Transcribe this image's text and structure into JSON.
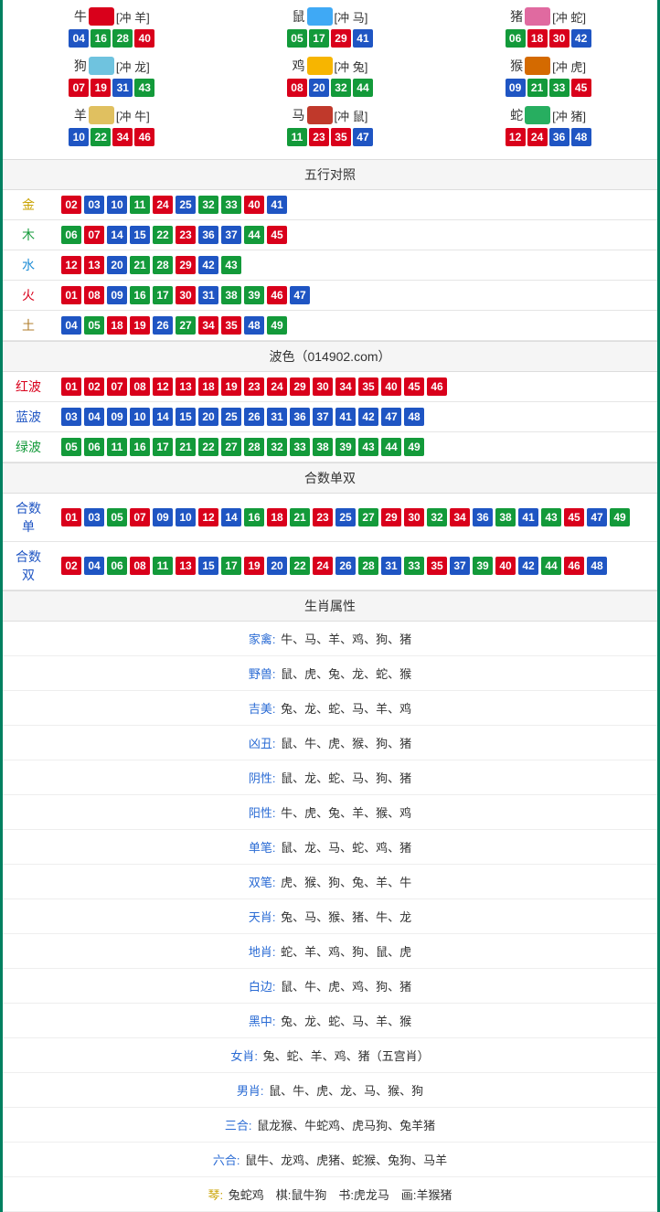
{
  "colors": {
    "red": "#d9001b",
    "blue": "#1f55c3",
    "green": "#139a3a"
  },
  "ball_color_map": {
    "01": "red",
    "02": "red",
    "07": "red",
    "08": "red",
    "12": "red",
    "13": "red",
    "18": "red",
    "19": "red",
    "23": "red",
    "24": "red",
    "29": "red",
    "30": "red",
    "34": "red",
    "35": "red",
    "40": "red",
    "45": "red",
    "46": "red",
    "03": "blue",
    "04": "blue",
    "09": "blue",
    "10": "blue",
    "14": "blue",
    "15": "blue",
    "20": "blue",
    "25": "blue",
    "26": "blue",
    "31": "blue",
    "36": "blue",
    "37": "blue",
    "41": "blue",
    "42": "blue",
    "47": "blue",
    "48": "blue",
    "05": "green",
    "06": "green",
    "11": "green",
    "16": "green",
    "17": "green",
    "21": "green",
    "22": "green",
    "27": "green",
    "28": "green",
    "32": "green",
    "33": "green",
    "38": "green",
    "39": "green",
    "43": "green",
    "44": "green",
    "49": "green"
  },
  "zodiac": [
    {
      "char": "牛",
      "icon_color": "#d9001b",
      "clash": "[冲 羊]",
      "balls": [
        "04",
        "16",
        "28",
        "40"
      ]
    },
    {
      "char": "鼠",
      "icon_color": "#3fa9f5",
      "clash": "[冲 马]",
      "balls": [
        "05",
        "17",
        "29",
        "41"
      ]
    },
    {
      "char": "猪",
      "icon_color": "#e06aa0",
      "clash": "[冲 蛇]",
      "balls": [
        "06",
        "18",
        "30",
        "42"
      ]
    },
    {
      "char": "狗",
      "icon_color": "#6fc3df",
      "clash": "[冲 龙]",
      "balls": [
        "07",
        "19",
        "31",
        "43"
      ]
    },
    {
      "char": "鸡",
      "icon_color": "#f7b500",
      "clash": "[冲 兔]",
      "balls": [
        "08",
        "20",
        "32",
        "44"
      ]
    },
    {
      "char": "猴",
      "icon_color": "#d46a00",
      "clash": "[冲 虎]",
      "balls": [
        "09",
        "21",
        "33",
        "45"
      ]
    },
    {
      "char": "羊",
      "icon_color": "#e0c060",
      "clash": "[冲 牛]",
      "balls": [
        "10",
        "22",
        "34",
        "46"
      ]
    },
    {
      "char": "马",
      "icon_color": "#c0392b",
      "clash": "[冲 鼠]",
      "balls": [
        "11",
        "23",
        "35",
        "47"
      ]
    },
    {
      "char": "蛇",
      "icon_color": "#27ae60",
      "clash": "[冲 猪]",
      "balls": [
        "12",
        "24",
        "36",
        "48"
      ]
    }
  ],
  "wuxing": {
    "title": "五行对照",
    "rows": [
      {
        "label": "金",
        "label_color": "#c9a200",
        "balls": [
          "02",
          "03",
          "10",
          "11",
          "24",
          "25",
          "32",
          "33",
          "40",
          "41"
        ]
      },
      {
        "label": "木",
        "label_color": "#139a3a",
        "balls": [
          "06",
          "07",
          "14",
          "15",
          "22",
          "23",
          "36",
          "37",
          "44",
          "45"
        ]
      },
      {
        "label": "水",
        "label_color": "#1f8dd6",
        "balls": [
          "12",
          "13",
          "20",
          "21",
          "28",
          "29",
          "42",
          "43"
        ]
      },
      {
        "label": "火",
        "label_color": "#d9001b",
        "balls": [
          "01",
          "08",
          "09",
          "16",
          "17",
          "30",
          "31",
          "38",
          "39",
          "46",
          "47"
        ]
      },
      {
        "label": "土",
        "label_color": "#b07d2b",
        "balls": [
          "04",
          "05",
          "18",
          "19",
          "26",
          "27",
          "34",
          "35",
          "48",
          "49"
        ]
      }
    ]
  },
  "bose": {
    "title": "波色（014902.com）",
    "rows": [
      {
        "label": "红波",
        "label_color": "#d9001b",
        "balls": [
          "01",
          "02",
          "07",
          "08",
          "12",
          "13",
          "18",
          "19",
          "23",
          "24",
          "29",
          "30",
          "34",
          "35",
          "40",
          "45",
          "46"
        ]
      },
      {
        "label": "蓝波",
        "label_color": "#1f55c3",
        "balls": [
          "03",
          "04",
          "09",
          "10",
          "14",
          "15",
          "20",
          "25",
          "26",
          "31",
          "36",
          "37",
          "41",
          "42",
          "47",
          "48"
        ]
      },
      {
        "label": "绿波",
        "label_color": "#139a3a",
        "balls": [
          "05",
          "06",
          "11",
          "16",
          "17",
          "21",
          "22",
          "27",
          "28",
          "32",
          "33",
          "38",
          "39",
          "43",
          "44",
          "49"
        ]
      }
    ]
  },
  "heshu": {
    "title": "合数单双",
    "rows": [
      {
        "label": "合数单",
        "label_color": "#1f55c3",
        "balls": [
          "01",
          "03",
          "05",
          "07",
          "09",
          "10",
          "12",
          "14",
          "16",
          "18",
          "21",
          "23",
          "25",
          "27",
          "29",
          "30",
          "32",
          "34",
          "36",
          "38",
          "41",
          "43",
          "45",
          "47",
          "49"
        ]
      },
      {
        "label": "合数双",
        "label_color": "#1f55c3",
        "balls": [
          "02",
          "04",
          "06",
          "08",
          "11",
          "13",
          "15",
          "17",
          "19",
          "20",
          "22",
          "24",
          "26",
          "28",
          "31",
          "33",
          "35",
          "37",
          "39",
          "40",
          "42",
          "44",
          "46",
          "48"
        ]
      }
    ]
  },
  "shengxiao": {
    "title": "生肖属性",
    "rows": [
      {
        "label": "家禽:",
        "value": "牛、马、羊、鸡、狗、猪"
      },
      {
        "label": "野兽:",
        "value": "鼠、虎、兔、龙、蛇、猴"
      },
      {
        "label": "吉美:",
        "value": "兔、龙、蛇、马、羊、鸡"
      },
      {
        "label": "凶丑:",
        "value": "鼠、牛、虎、猴、狗、猪"
      },
      {
        "label": "阴性:",
        "value": "鼠、龙、蛇、马、狗、猪"
      },
      {
        "label": "阳性:",
        "value": "牛、虎、兔、羊、猴、鸡"
      },
      {
        "label": "单笔:",
        "value": "鼠、龙、马、蛇、鸡、猪"
      },
      {
        "label": "双笔:",
        "value": "虎、猴、狗、兔、羊、牛"
      },
      {
        "label": "天肖:",
        "value": "兔、马、猴、猪、牛、龙"
      },
      {
        "label": "地肖:",
        "value": "蛇、羊、鸡、狗、鼠、虎"
      },
      {
        "label": "白边:",
        "value": "鼠、牛、虎、鸡、狗、猪"
      },
      {
        "label": "黑中:",
        "value": "兔、龙、蛇、马、羊、猴"
      },
      {
        "label": "女肖:",
        "value": "兔、蛇、羊、鸡、猪（五宫肖）"
      },
      {
        "label": "男肖:",
        "value": "鼠、牛、虎、龙、马、猴、狗"
      },
      {
        "label": "三合:",
        "value": "鼠龙猴、牛蛇鸡、虎马狗、兔羊猪"
      },
      {
        "label": "六合:",
        "value": "鼠牛、龙鸡、虎猪、蛇猴、兔狗、马羊"
      },
      {
        "label": "琴:",
        "value": "兔蛇鸡　棋:鼠牛狗　书:虎龙马　画:羊猴猪",
        "label_color": "#c9a200"
      }
    ]
  }
}
